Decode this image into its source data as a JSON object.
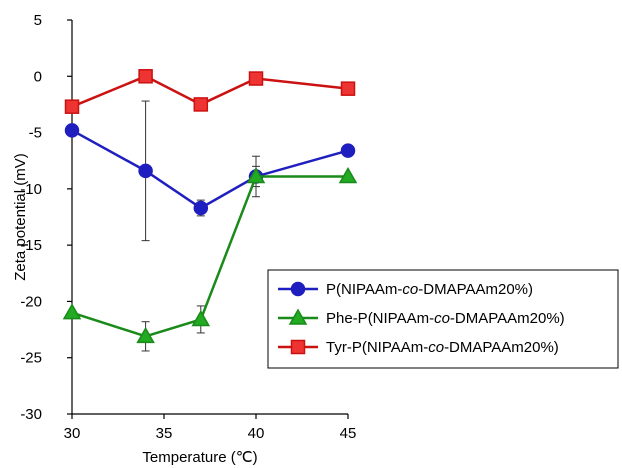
{
  "chart_data": {
    "type": "line",
    "xlabel": "Temperature (℃)",
    "ylabel": "Zeta potential (mV)",
    "xlim": [
      30,
      45
    ],
    "ylim": [
      -30,
      5
    ],
    "xticks": [
      "30",
      "35",
      "40",
      "45"
    ],
    "yticks": [
      "5",
      "0",
      "-5",
      "-10",
      "-15",
      "-20",
      "-25",
      "-30"
    ],
    "grid": false,
    "legend_position": "lower-right",
    "series": [
      {
        "name_parts": [
          "P(NIPAAm-",
          "co",
          "-DMAPAAm20%)"
        ],
        "color": "#1f1fbf",
        "fill": "#1f1fbf",
        "marker": "circle",
        "x": [
          30,
          34,
          37,
          40,
          45
        ],
        "y": [
          -4.8,
          -8.4,
          -11.7,
          -8.9,
          -6.6
        ],
        "err": [
          0,
          6.2,
          0.7,
          1.8,
          0
        ]
      },
      {
        "name_parts": [
          "Phe-P(NIPAAm-",
          "co",
          "-DMAPAAm20%)"
        ],
        "color": "#1a8a1a",
        "fill": "#22aa22",
        "marker": "triangle",
        "x": [
          30,
          34,
          37,
          40,
          45
        ],
        "y": [
          -21.0,
          -23.1,
          -21.6,
          -8.9,
          -8.9
        ],
        "err": [
          0,
          1.3,
          1.2,
          0.9,
          0
        ]
      },
      {
        "name_parts": [
          "Tyr-P(NIPAAm-",
          "co",
          "-DMAPAAm20%)"
        ],
        "color": "#cc1111",
        "fill": "#ee3333",
        "marker": "square",
        "x": [
          30,
          34,
          37,
          40,
          45
        ],
        "y": [
          -2.7,
          0.0,
          -2.5,
          -0.2,
          -1.1
        ],
        "err": [
          0,
          0,
          0,
          0,
          0
        ]
      }
    ]
  }
}
